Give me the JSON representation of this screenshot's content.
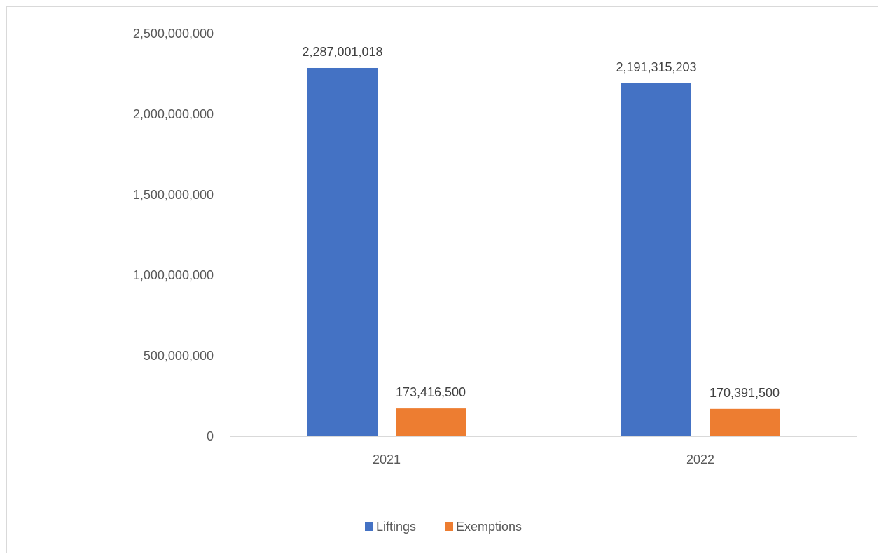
{
  "chart_data": {
    "type": "bar",
    "categories": [
      "2021",
      "2022"
    ],
    "series": [
      {
        "name": "Liftings",
        "values": [
          2287001018,
          2191315203
        ],
        "labels": [
          "2,287,001,018",
          "2,191,315,203"
        ],
        "color": "#4472C4"
      },
      {
        "name": "Exemptions",
        "values": [
          173416500,
          170391500
        ],
        "labels": [
          "173,416,500",
          "170,391,500"
        ],
        "color": "#ED7D31"
      }
    ],
    "ylim": [
      0,
      2500000000
    ],
    "yticks": [
      0,
      500000000,
      1000000000,
      1500000000,
      2000000000,
      2500000000
    ],
    "ytick_labels": [
      "0",
      "500,000,000",
      "1,000,000,000",
      "1,500,000,000",
      "2,000,000,000",
      "2,500,000,000"
    ],
    "title": "",
    "xlabel": "",
    "ylabel": "",
    "grid": false,
    "legend_position": "bottom",
    "axis_color": "#d9d9d9"
  }
}
